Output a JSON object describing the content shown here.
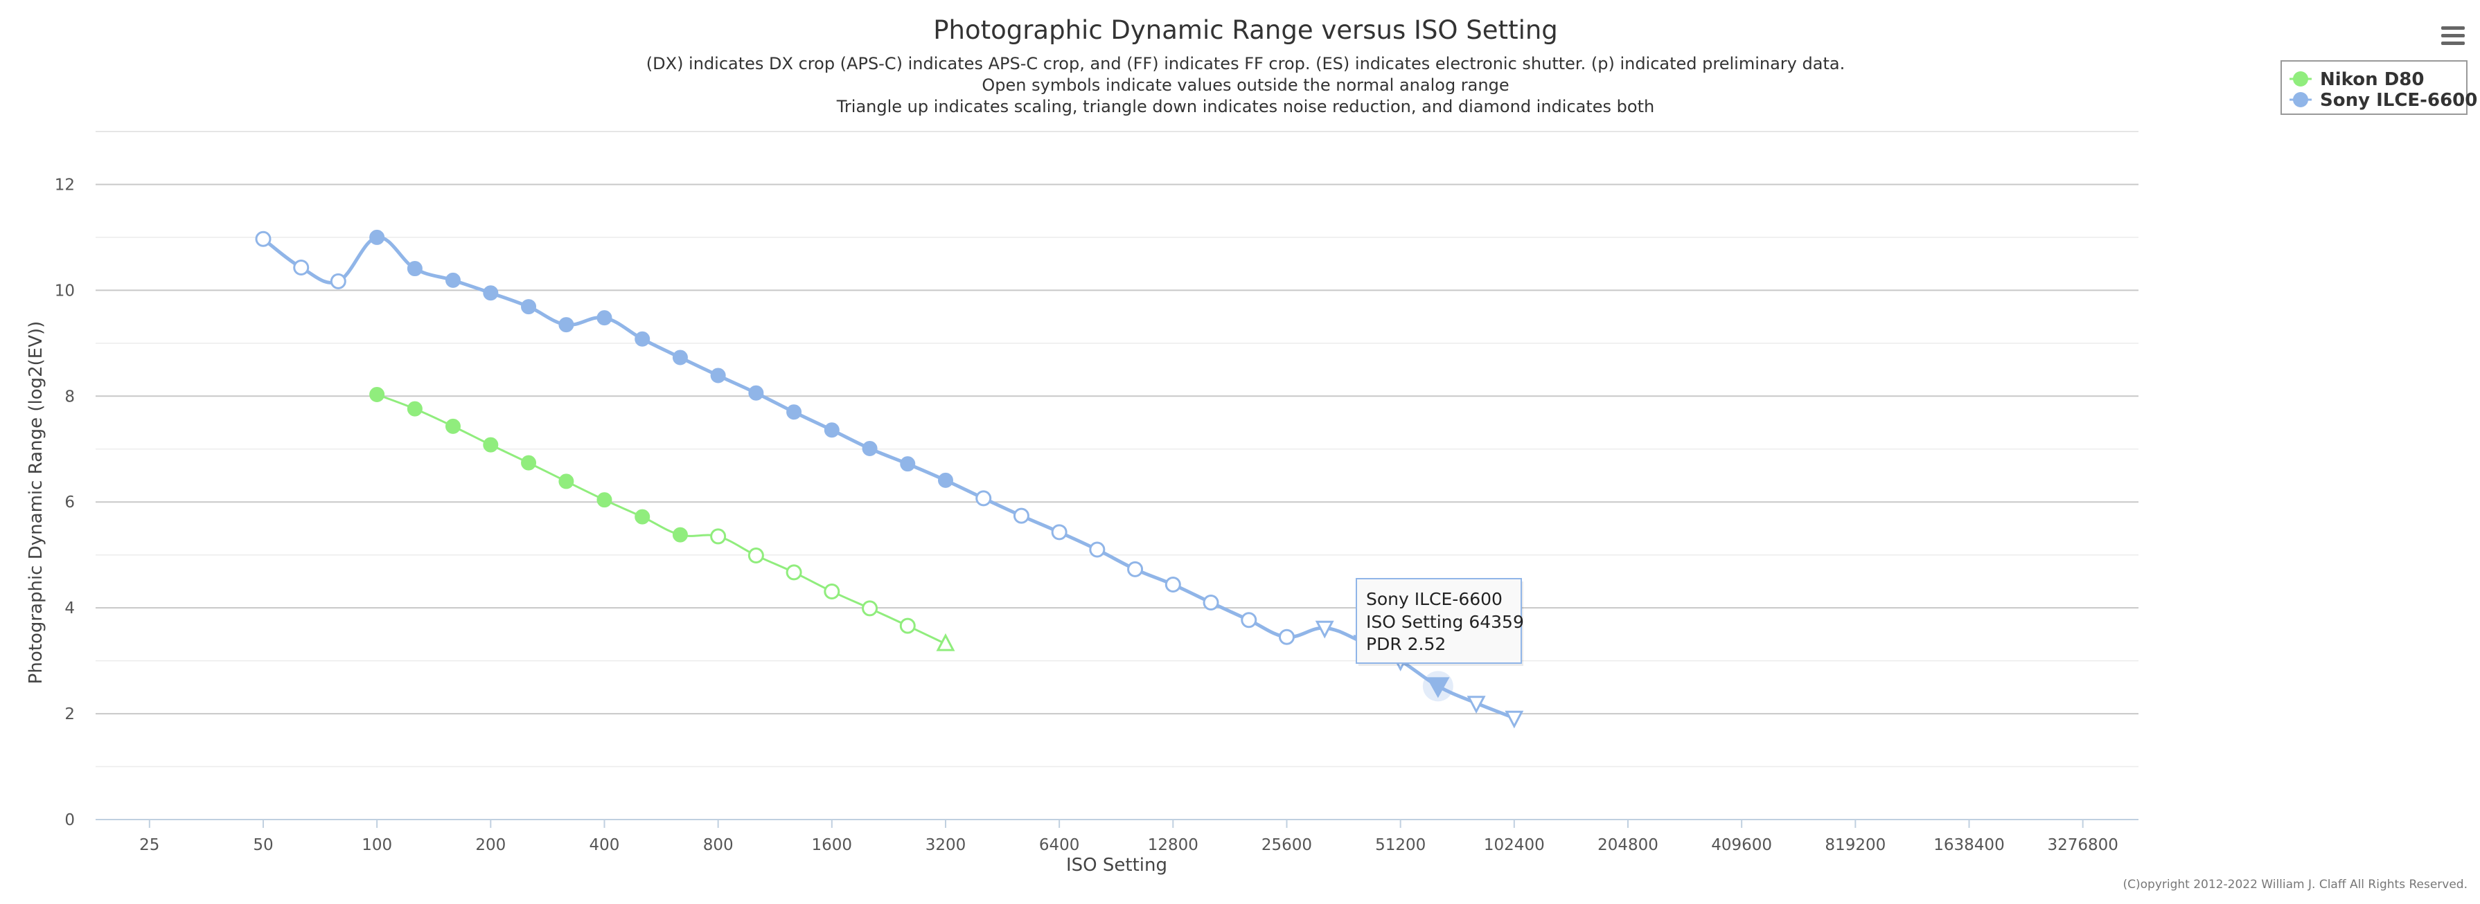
{
  "chart_data": {
    "type": "line",
    "title": "Photographic Dynamic Range versus ISO Setting",
    "subtitle_lines": [
      "(DX) indicates DX crop (APS-C) indicates APS-C crop, and (FF) indicates FF crop. (ES) indicates electronic shutter. (p) indicated preliminary data.",
      "Open symbols indicate values outside the normal analog range",
      "Triangle up indicates scaling, triangle down indicates noise reduction, and diamond indicates both"
    ],
    "xlabel": "ISO Setting",
    "ylabel": "Photographic Dynamic Range (log2(EV))",
    "x_scale": "log2",
    "x_ticks": [
      25,
      50,
      100,
      200,
      400,
      800,
      1600,
      3200,
      6400,
      12800,
      25600,
      51200,
      102400,
      204800,
      409600,
      819200,
      1638400,
      3276800
    ],
    "xlim": [
      18,
      4600000
    ],
    "y_ticks": [
      0,
      2,
      4,
      6,
      8,
      10,
      12
    ],
    "ylim": [
      0,
      13
    ],
    "grid": true,
    "legend_position": "top-right",
    "series": [
      {
        "name": "Nikon D80",
        "color": "#90ed7d",
        "points": [
          {
            "x": 100,
            "y": 8.03,
            "m": "filled"
          },
          {
            "x": 126,
            "y": 7.76,
            "m": "filled"
          },
          {
            "x": 159,
            "y": 7.43,
            "m": "filled"
          },
          {
            "x": 200,
            "y": 7.08,
            "m": "filled"
          },
          {
            "x": 252,
            "y": 6.74,
            "m": "filled"
          },
          {
            "x": 317,
            "y": 6.39,
            "m": "filled"
          },
          {
            "x": 400,
            "y": 6.04,
            "m": "filled"
          },
          {
            "x": 504,
            "y": 5.72,
            "m": "filled"
          },
          {
            "x": 635,
            "y": 5.38,
            "m": "filled"
          },
          {
            "x": 800,
            "y": 5.35,
            "m": "open"
          },
          {
            "x": 1008,
            "y": 4.99,
            "m": "open"
          },
          {
            "x": 1270,
            "y": 4.67,
            "m": "open"
          },
          {
            "x": 1600,
            "y": 4.31,
            "m": "open"
          },
          {
            "x": 2016,
            "y": 3.99,
            "m": "open"
          },
          {
            "x": 2540,
            "y": 3.66,
            "m": "open"
          },
          {
            "x": 3200,
            "y": 3.32,
            "m": "triangle-up-open"
          }
        ]
      },
      {
        "name": "Sony ILCE-6600",
        "color": "#90b5e8",
        "points": [
          {
            "x": 50,
            "y": 10.97,
            "m": "open"
          },
          {
            "x": 63,
            "y": 10.43,
            "m": "open"
          },
          {
            "x": 79,
            "y": 10.17,
            "m": "open"
          },
          {
            "x": 100,
            "y": 11.0,
            "m": "filled"
          },
          {
            "x": 126,
            "y": 10.41,
            "m": "filled"
          },
          {
            "x": 159,
            "y": 10.19,
            "m": "filled"
          },
          {
            "x": 200,
            "y": 9.95,
            "m": "filled"
          },
          {
            "x": 252,
            "y": 9.69,
            "m": "filled"
          },
          {
            "x": 317,
            "y": 9.35,
            "m": "filled"
          },
          {
            "x": 400,
            "y": 9.48,
            "m": "filled"
          },
          {
            "x": 504,
            "y": 9.08,
            "m": "filled"
          },
          {
            "x": 635,
            "y": 8.73,
            "m": "filled"
          },
          {
            "x": 800,
            "y": 8.39,
            "m": "filled"
          },
          {
            "x": 1008,
            "y": 8.06,
            "m": "filled"
          },
          {
            "x": 1270,
            "y": 7.7,
            "m": "filled"
          },
          {
            "x": 1600,
            "y": 7.36,
            "m": "filled"
          },
          {
            "x": 2016,
            "y": 7.01,
            "m": "filled"
          },
          {
            "x": 2540,
            "y": 6.72,
            "m": "filled"
          },
          {
            "x": 3200,
            "y": 6.41,
            "m": "filled"
          },
          {
            "x": 4032,
            "y": 6.07,
            "m": "open"
          },
          {
            "x": 5080,
            "y": 5.74,
            "m": "open"
          },
          {
            "x": 6400,
            "y": 5.43,
            "m": "open"
          },
          {
            "x": 8063,
            "y": 5.1,
            "m": "open"
          },
          {
            "x": 10159,
            "y": 4.73,
            "m": "open"
          },
          {
            "x": 12800,
            "y": 4.44,
            "m": "open"
          },
          {
            "x": 16127,
            "y": 4.1,
            "m": "open"
          },
          {
            "x": 20319,
            "y": 3.77,
            "m": "open"
          },
          {
            "x": 25600,
            "y": 3.45,
            "m": "open"
          },
          {
            "x": 32254,
            "y": 3.62,
            "m": "triangle-down-open"
          },
          {
            "x": 40637,
            "y": 3.35,
            "m": "triangle-down-open"
          },
          {
            "x": 51200,
            "y": 3.0,
            "m": "triangle-down-open"
          },
          {
            "x": 64359,
            "y": 2.52,
            "m": "triangle-down-filled"
          },
          {
            "x": 81275,
            "y": 2.2,
            "m": "triangle-down-open"
          },
          {
            "x": 102400,
            "y": 1.92,
            "m": "triangle-down-open"
          }
        ]
      }
    ],
    "tooltip": {
      "series_name": "Sony ILCE-6600",
      "x_text": "ISO Setting 64359",
      "y_text": "PDR 2.52"
    },
    "credit": "(C)opyright 2012-2022 William J. Claff All Rights Reserved."
  },
  "menu_icon": "hamburger-menu-icon"
}
